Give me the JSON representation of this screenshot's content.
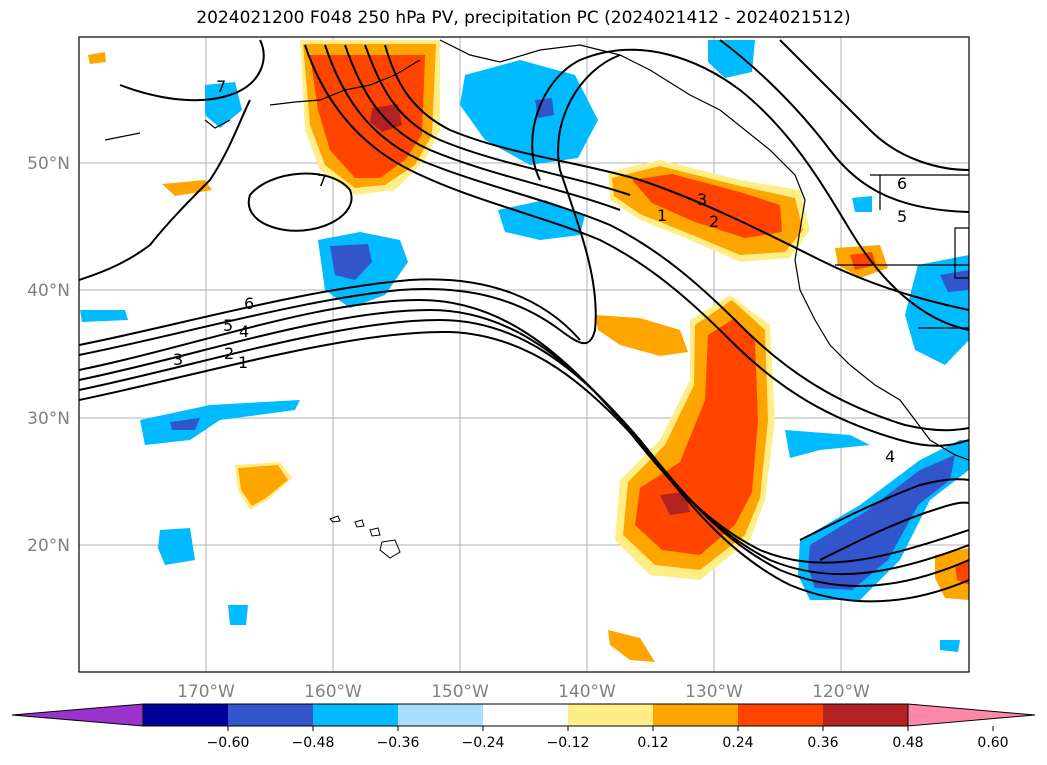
{
  "title": "2024021200 F048 250 hPa PV, precipitation PC (2024021412 - 2024021512)",
  "axes": {
    "lon_labels": [
      "170°W",
      "160°W",
      "150°W",
      "140°W",
      "130°W",
      "120°W"
    ],
    "lat_labels": [
      "50°N",
      "40°N",
      "30°N",
      "20°N"
    ]
  },
  "colorbar": {
    "ticks": [
      "−0.60",
      "−0.48",
      "−0.36",
      "−0.24",
      "−0.12",
      "0.12",
      "0.24",
      "0.36",
      "0.48",
      "0.60"
    ],
    "colors": [
      "#9933cc",
      "#000099",
      "#3355cc",
      "#00bbff",
      "#aaddff",
      "#ffffff",
      "#ffee88",
      "#ffa500",
      "#ff4400",
      "#b22222",
      "#ff88aa"
    ]
  },
  "contour_labels": [
    "7",
    "7",
    "6",
    "5",
    "4",
    "3",
    "2",
    "1",
    "3",
    "2",
    "1",
    "6",
    "5",
    "4"
  ],
  "map_features": [
    "contour-lines",
    "coastlines",
    "hawaii-islands",
    "precipitation-anomaly-shading"
  ]
}
